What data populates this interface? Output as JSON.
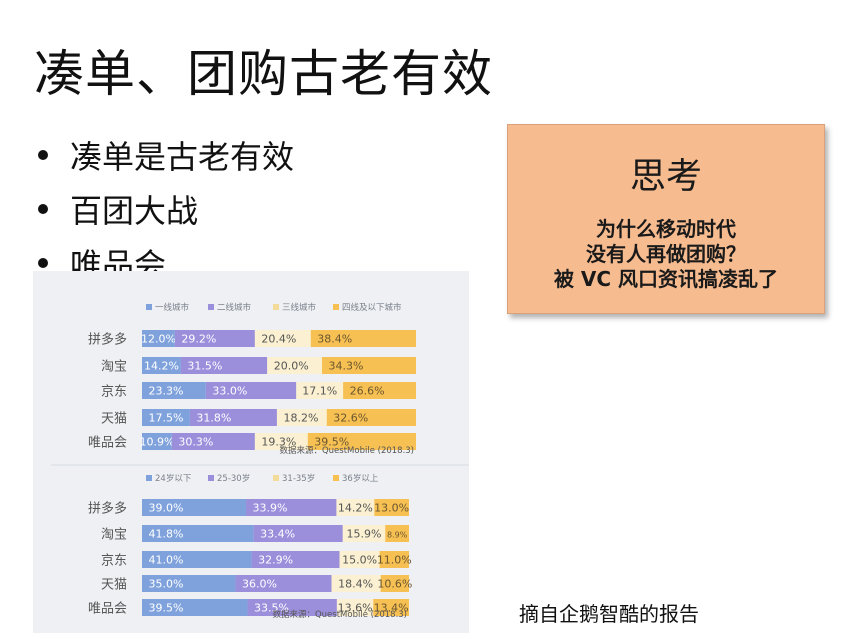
{
  "slide": {
    "title": "凑单、团购古老有效",
    "bullets": [
      "凑单是古老有效",
      "百团大战",
      "唯品会"
    ],
    "think_box": {
      "title": "思考",
      "lines": [
        "为什么移动时代",
        "没有人再做团购？",
        "被 VC 风口资讯搞凌乱了"
      ],
      "color": "#f6bb8f"
    },
    "source_note": "摘自企鹅智酷的报告"
  },
  "chart_data": [
    {
      "type": "bar",
      "orientation": "horizontal",
      "stacked": true,
      "normalized": true,
      "legend_position": "top",
      "categories": [
        "拼多多",
        "淘宝",
        "京东",
        "天猫",
        "唯品会"
      ],
      "series": [
        {
          "name": "一线城市",
          "color": "#7fa2dc",
          "values": [
            12.0,
            14.2,
            23.3,
            17.5,
            10.9
          ],
          "labels": [
            "12.0%",
            "14.2%",
            "23.3%",
            "17.5%",
            "10.9%"
          ]
        },
        {
          "name": "二线城市",
          "color": "#9b8fdc",
          "values": [
            29.2,
            31.5,
            33.0,
            31.8,
            30.3
          ],
          "labels": [
            "29.2%",
            "31.5%",
            "33.0%",
            "31.8%",
            "30.3%"
          ]
        },
        {
          "name": "三线城市",
          "color": "#fbf1d2",
          "values": [
            20.4,
            20.0,
            17.1,
            18.2,
            19.3
          ],
          "labels": [
            "20.4%",
            "20.0%",
            "17.1%",
            "18.2%",
            "19.3%"
          ]
        },
        {
          "name": "四线及以下城市",
          "color": "#f7c052",
          "values": [
            38.4,
            34.3,
            26.6,
            32.6,
            39.5
          ],
          "labels": [
            "38.4%",
            "34.3%",
            "26.6%",
            "32.6%",
            "39.5%"
          ]
        }
      ],
      "source": "数据来源：QuestMobile (2018.3)"
    },
    {
      "type": "bar",
      "orientation": "horizontal",
      "stacked": true,
      "normalized": true,
      "legend_position": "top",
      "categories": [
        "拼多多",
        "淘宝",
        "京东",
        "天猫",
        "唯品会"
      ],
      "series": [
        {
          "name": "24岁以下",
          "color": "#7fa2dc",
          "values": [
            39.0,
            41.8,
            41.0,
            35.0,
            39.5
          ],
          "labels": [
            "39.0%",
            "41.8%",
            "41.0%",
            "35.0%",
            "39.5%"
          ]
        },
        {
          "name": "25-30岁",
          "color": "#9b8fdc",
          "values": [
            33.9,
            33.4,
            32.9,
            36.0,
            33.5
          ],
          "labels": [
            "33.9%",
            "33.4%",
            "32.9%",
            "36.0%",
            "33.5%"
          ]
        },
        {
          "name": "31-35岁",
          "color": "#fbf1d2",
          "values": [
            14.2,
            15.9,
            15.0,
            18.4,
            13.6
          ],
          "labels": [
            "14.2%",
            "15.9%",
            "15.0%",
            "18.4%",
            "13.6%"
          ]
        },
        {
          "name": "36岁以上",
          "color": "#f7c052",
          "values": [
            13.0,
            8.9,
            11.0,
            10.6,
            13.4
          ],
          "labels": [
            "13.0%",
            "8.9%",
            "11.0%",
            "10.6%",
            "13.4%"
          ]
        }
      ],
      "source": "数据来源：QuestMobile (2018.3)"
    }
  ]
}
